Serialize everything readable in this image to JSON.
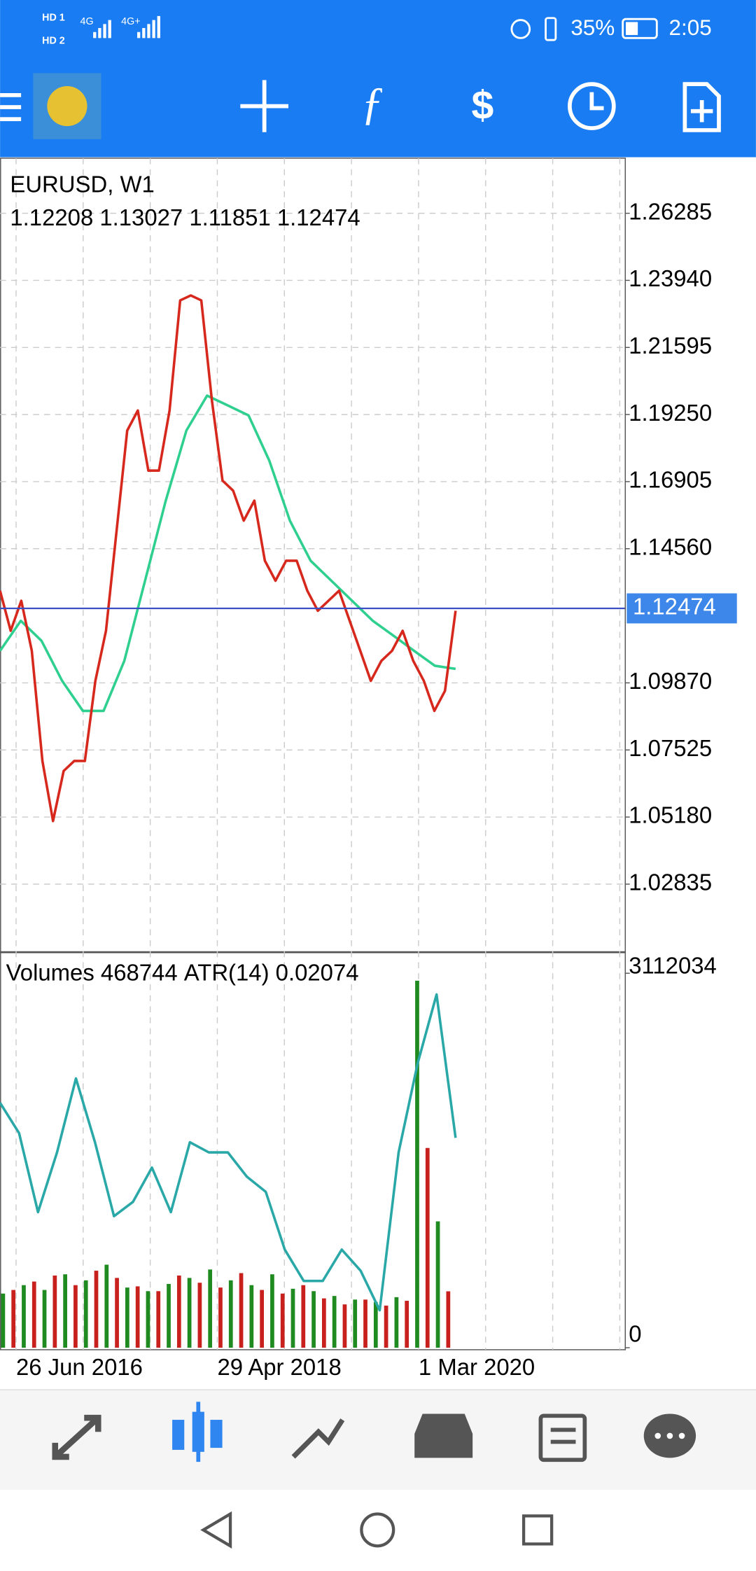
{
  "status_bar": {
    "network1": "4G",
    "network2": "4G+",
    "battery": "35%",
    "time": "2:05"
  },
  "chart_data": [
    {
      "type": "line",
      "symbol": "EURUSD, W1",
      "ohlc": "1.12208 1.13027 1.11851 1.12474",
      "ylim": [
        1.0049,
        1.2821
      ],
      "yticks": [
        1.26285,
        {
          "value": 1.2394,
          "label": "1.23940"
        },
        1.21595,
        {
          "value": 1.1925,
          "label": "1.19250"
        },
        1.16905,
        {
          "value": 1.1456,
          "label": "1.14560"
        },
        {
          "value": 1.0987,
          "label": "1.09870"
        },
        1.07525,
        {
          "value": 1.0518,
          "label": "1.05180"
        },
        1.02835
      ],
      "current_price": 1.12474,
      "current_price_color": "#3b4fc4",
      "grid": true,
      "x_labels": [
        "26 Jun 2016",
        "29 Apr 2018",
        "1 Mar 2020"
      ],
      "series": [
        {
          "color": "#2fcf8f",
          "values": [
            1.1099,
            1.1204,
            1.1134,
            1.0994,
            1.0889,
            1.0889,
            1.1064,
            1.1344,
            1.1624,
            1.1869,
            1.1991,
            1.1957,
            1.1922,
            1.1764,
            1.1554,
            1.1414,
            1.1344,
            1.1274,
            1.1204,
            1.1152,
            1.1099,
            1.1047,
            1.1036
          ]
        },
        {
          "color": "#d6281c",
          "values": [
            1.1309,
            1.1169,
            1.1274,
            1.1099,
            1.0714,
            1.0504,
            1.0679,
            1.0714,
            1.0714,
            1.0994,
            1.1169,
            1.1519,
            1.1869,
            1.1939,
            1.1729,
            1.1729,
            1.1939,
            1.2324,
            1.2341,
            1.2324,
            1.1974,
            1.1694,
            1.1659,
            1.1554,
            1.1624,
            1.1414,
            1.1344,
            1.1414,
            1.1414,
            1.1309,
            1.1239,
            1.1274,
            1.1309,
            1.1204,
            1.1099,
            1.0994,
            1.1064,
            1.1099,
            1.1169,
            1.1064,
            1.0994,
            1.0889,
            1.0959,
            1.1239
          ]
        }
      ]
    },
    {
      "type": "bar",
      "volume_label": "Volumes",
      "atr_label": "ATR(14)",
      "ylim": [
        0,
        3112034
      ],
      "yticks": [
        3112034,
        0
      ],
      "y2lim": [
        0,
        0.037
      ],
      "series": [
        {
          "color": "#1f8a1f",
          "values": [
            450000,
            520000,
            480000,
            610000,
            560000,
            690000,
            500000,
            470000,
            530000,
            580000,
            650000,
            560000,
            520000,
            610000,
            490000,
            470000,
            430000,
            400000,
            380000,
            420000,
            3050000,
            1050000
          ]
        },
        {
          "color": "#c8201d",
          "values": [
            480000,
            550000,
            600000,
            520000,
            640000,
            580000,
            510000,
            470000,
            600000,
            540000,
            500000,
            620000,
            480000,
            450000,
            520000,
            410000,
            360000,
            400000,
            350000,
            390000,
            1660000,
            468744
          ]
        },
        {
          "color": "#2aa8a8",
          "axis": "y2",
          "values": [
            0.0242,
            0.0212,
            0.0134,
            0.0193,
            0.0266,
            0.0203,
            0.013,
            0.0144,
            0.0178,
            0.0134,
            0.0203,
            0.0193,
            0.0193,
            0.0169,
            0.0154,
            0.0097,
            0.0066,
            0.0066,
            0.0097,
            0.0076,
            0.0037,
            0.0193,
            0.0281,
            0.0349,
            0.02074
          ]
        }
      ]
    }
  ]
}
